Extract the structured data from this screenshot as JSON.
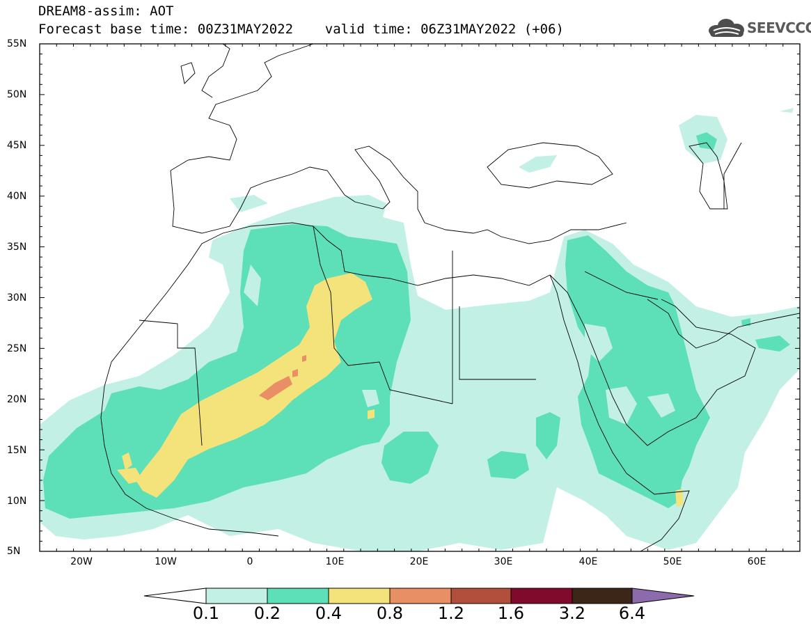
{
  "header": {
    "title_line1": "DREAM8-assim: AOT",
    "title_line2": "Forecast base time: 00Z31MAY2022    valid time: 06Z31MAY2022 (+06)",
    "logo_text": "SEEVCCC"
  },
  "map": {
    "lon_range": [
      -25,
      65
    ],
    "lat_range": [
      5,
      55
    ],
    "lat_labels": [
      "55N",
      "50N",
      "45N",
      "40N",
      "35N",
      "30N",
      "25N",
      "20N",
      "15N",
      "10N",
      "5N"
    ],
    "lon_labels": [
      "20W",
      "10W",
      "0",
      "10E",
      "20E",
      "30E",
      "40E",
      "50E",
      "60E"
    ]
  },
  "colorbar": {
    "levels": [
      "0.1",
      "0.2",
      "0.4",
      "0.8",
      "1.2",
      "1.6",
      "3.2",
      "6.4"
    ],
    "colors": [
      "#ffffff",
      "#c2f0e4",
      "#5ddfb8",
      "#f4e37a",
      "#e88f66",
      "#b24e3c",
      "#800a2c",
      "#3b2617",
      "#8d6aab"
    ]
  }
}
